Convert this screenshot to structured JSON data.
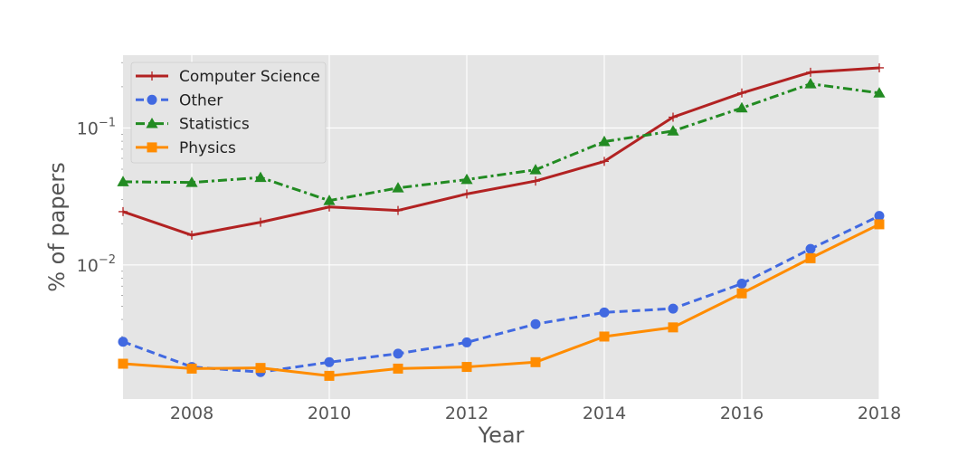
{
  "chart_data": {
    "type": "line",
    "xlabel": "Year",
    "ylabel": "% of papers",
    "yscale": "log",
    "xlim": [
      2007,
      2018
    ],
    "ylim": [
      0.00105,
      0.34
    ],
    "grid": true,
    "legend_position": "top-left",
    "x": [
      2007,
      2008,
      2009,
      2010,
      2011,
      2012,
      2013,
      2014,
      2015,
      2016,
      2017,
      2018
    ],
    "x_ticks": [
      2008,
      2010,
      2012,
      2014,
      2016,
      2018
    ],
    "y_ticks": [
      {
        "value": 0.1,
        "base": "10",
        "exp": "−1"
      },
      {
        "value": 0.01,
        "base": "10",
        "exp": "−2"
      }
    ],
    "series": [
      {
        "name": "Computer Science",
        "color": "#b22222",
        "marker": "plus",
        "linestyle": "solid",
        "values": [
          0.0245,
          0.0165,
          0.0205,
          0.0265,
          0.025,
          0.033,
          0.041,
          0.057,
          0.12,
          0.18,
          0.255,
          0.275
        ]
      },
      {
        "name": "Other",
        "color": "#4169e1",
        "marker": "circle",
        "linestyle": "dashed",
        "values": [
          0.00275,
          0.0018,
          0.00165,
          0.00195,
          0.00225,
          0.00272,
          0.0037,
          0.0045,
          0.0048,
          0.0073,
          0.0131,
          0.0228
        ]
      },
      {
        "name": "Statistics",
        "color": "#228b22",
        "marker": "triangle",
        "linestyle": "dashdot",
        "values": [
          0.0405,
          0.04,
          0.0435,
          0.0295,
          0.0365,
          0.042,
          0.0495,
          0.0795,
          0.095,
          0.14,
          0.21,
          0.18
        ]
      },
      {
        "name": "Physics",
        "color": "#ff8c00",
        "marker": "square",
        "linestyle": "solid",
        "values": [
          0.0019,
          0.00175,
          0.00177,
          0.00155,
          0.00175,
          0.0018,
          0.00195,
          0.003,
          0.0035,
          0.0062,
          0.0112,
          0.0198
        ]
      }
    ]
  }
}
